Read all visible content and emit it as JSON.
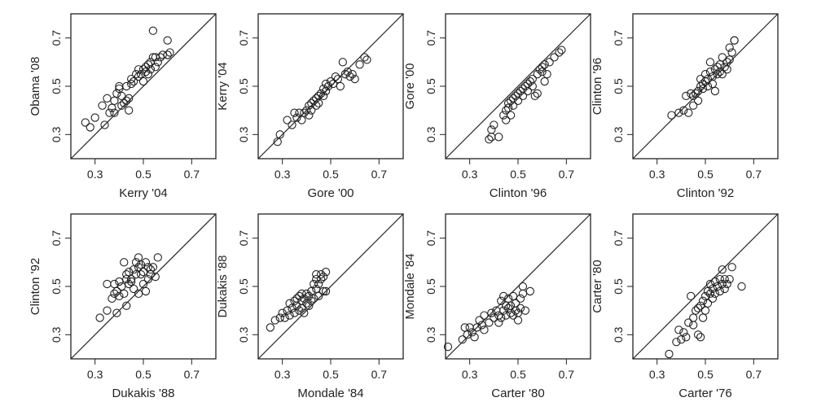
{
  "chart_data": [
    {
      "type": "scatter",
      "xlabel": "Kerry '04",
      "ylabel": "Obama '08",
      "xlim": [
        0.2,
        0.8
      ],
      "ylim": [
        0.2,
        0.8
      ],
      "xticks": [
        "0.3",
        "0.5",
        "0.7"
      ],
      "yticks": [
        "0.3",
        "0.5",
        "0.7"
      ],
      "reference_line": "y = x",
      "points": [
        [
          0.26,
          0.35
        ],
        [
          0.28,
          0.33
        ],
        [
          0.3,
          0.37
        ],
        [
          0.33,
          0.42
        ],
        [
          0.34,
          0.34
        ],
        [
          0.35,
          0.45
        ],
        [
          0.36,
          0.39
        ],
        [
          0.37,
          0.41
        ],
        [
          0.38,
          0.44
        ],
        [
          0.38,
          0.39
        ],
        [
          0.39,
          0.47
        ],
        [
          0.4,
          0.49
        ],
        [
          0.4,
          0.5
        ],
        [
          0.41,
          0.42
        ],
        [
          0.41,
          0.46
        ],
        [
          0.42,
          0.43
        ],
        [
          0.43,
          0.44
        ],
        [
          0.43,
          0.5
        ],
        [
          0.44,
          0.45
        ],
        [
          0.44,
          0.4
        ],
        [
          0.45,
          0.51
        ],
        [
          0.45,
          0.53
        ],
        [
          0.46,
          0.52
        ],
        [
          0.47,
          0.55
        ],
        [
          0.48,
          0.54
        ],
        [
          0.48,
          0.57
        ],
        [
          0.49,
          0.55
        ],
        [
          0.5,
          0.57
        ],
        [
          0.5,
          0.52
        ],
        [
          0.51,
          0.58
        ],
        [
          0.51,
          0.56
        ],
        [
          0.52,
          0.55
        ],
        [
          0.52,
          0.59
        ],
        [
          0.53,
          0.57
        ],
        [
          0.53,
          0.6
        ],
        [
          0.54,
          0.62
        ],
        [
          0.54,
          0.73
        ],
        [
          0.55,
          0.58
        ],
        [
          0.55,
          0.62
        ],
        [
          0.56,
          0.6
        ],
        [
          0.57,
          0.62
        ],
        [
          0.58,
          0.63
        ],
        [
          0.6,
          0.63
        ],
        [
          0.6,
          0.69
        ],
        [
          0.61,
          0.64
        ]
      ]
    },
    {
      "type": "scatter",
      "xlabel": "Gore '00",
      "ylabel": "Kerry '04",
      "xlim": [
        0.2,
        0.8
      ],
      "ylim": [
        0.2,
        0.8
      ],
      "xticks": [
        "0.3",
        "0.5",
        "0.7"
      ],
      "yticks": [
        "0.3",
        "0.5",
        "0.7"
      ],
      "reference_line": "y = x",
      "points": [
        [
          0.28,
          0.27
        ],
        [
          0.29,
          0.3
        ],
        [
          0.32,
          0.36
        ],
        [
          0.34,
          0.34
        ],
        [
          0.35,
          0.39
        ],
        [
          0.36,
          0.37
        ],
        [
          0.37,
          0.39
        ],
        [
          0.38,
          0.36
        ],
        [
          0.39,
          0.39
        ],
        [
          0.4,
          0.4
        ],
        [
          0.41,
          0.42
        ],
        [
          0.41,
          0.38
        ],
        [
          0.42,
          0.43
        ],
        [
          0.42,
          0.4
        ],
        [
          0.43,
          0.44
        ],
        [
          0.44,
          0.42
        ],
        [
          0.44,
          0.45
        ],
        [
          0.45,
          0.46
        ],
        [
          0.45,
          0.43
        ],
        [
          0.46,
          0.47
        ],
        [
          0.47,
          0.46
        ],
        [
          0.47,
          0.49
        ],
        [
          0.48,
          0.48
        ],
        [
          0.48,
          0.51
        ],
        [
          0.49,
          0.5
        ],
        [
          0.5,
          0.52
        ],
        [
          0.51,
          0.51
        ],
        [
          0.52,
          0.54
        ],
        [
          0.53,
          0.53
        ],
        [
          0.54,
          0.5
        ],
        [
          0.55,
          0.6
        ],
        [
          0.56,
          0.55
        ],
        [
          0.57,
          0.56
        ],
        [
          0.58,
          0.54
        ],
        [
          0.59,
          0.55
        ],
        [
          0.6,
          0.53
        ],
        [
          0.62,
          0.59
        ],
        [
          0.64,
          0.62
        ],
        [
          0.65,
          0.61
        ]
      ]
    },
    {
      "type": "scatter",
      "xlabel": "Clinton '96",
      "ylabel": "Gore '00",
      "xlim": [
        0.2,
        0.8
      ],
      "ylim": [
        0.2,
        0.8
      ],
      "xticks": [
        "0.3",
        "0.5",
        "0.7"
      ],
      "yticks": [
        "0.3",
        "0.5",
        "0.7"
      ],
      "reference_line": "y = x",
      "points": [
        [
          0.38,
          0.28
        ],
        [
          0.39,
          0.29
        ],
        [
          0.39,
          0.32
        ],
        [
          0.4,
          0.34
        ],
        [
          0.42,
          0.29
        ],
        [
          0.44,
          0.38
        ],
        [
          0.45,
          0.36
        ],
        [
          0.45,
          0.4
        ],
        [
          0.46,
          0.41
        ],
        [
          0.46,
          0.43
        ],
        [
          0.47,
          0.38
        ],
        [
          0.47,
          0.44
        ],
        [
          0.48,
          0.45
        ],
        [
          0.48,
          0.42
        ],
        [
          0.49,
          0.46
        ],
        [
          0.5,
          0.47
        ],
        [
          0.5,
          0.44
        ],
        [
          0.51,
          0.48
        ],
        [
          0.52,
          0.49
        ],
        [
          0.52,
          0.46
        ],
        [
          0.53,
          0.5
        ],
        [
          0.54,
          0.48
        ],
        [
          0.54,
          0.51
        ],
        [
          0.55,
          0.52
        ],
        [
          0.56,
          0.5
        ],
        [
          0.56,
          0.53
        ],
        [
          0.57,
          0.46
        ],
        [
          0.58,
          0.55
        ],
        [
          0.58,
          0.47
        ],
        [
          0.59,
          0.57
        ],
        [
          0.6,
          0.56
        ],
        [
          0.6,
          0.58
        ],
        [
          0.61,
          0.59
        ],
        [
          0.61,
          0.52
        ],
        [
          0.62,
          0.55
        ],
        [
          0.63,
          0.6
        ],
        [
          0.65,
          0.62
        ],
        [
          0.67,
          0.64
        ],
        [
          0.68,
          0.65
        ]
      ]
    },
    {
      "type": "scatter",
      "xlabel": "Clinton '92",
      "ylabel": "Clinton '96",
      "xlim": [
        0.2,
        0.8
      ],
      "ylim": [
        0.2,
        0.8
      ],
      "xticks": [
        "0.3",
        "0.5",
        "0.7"
      ],
      "yticks": [
        "0.3",
        "0.5",
        "0.7"
      ],
      "reference_line": "y = x",
      "points": [
        [
          0.36,
          0.38
        ],
        [
          0.39,
          0.39
        ],
        [
          0.41,
          0.4
        ],
        [
          0.42,
          0.46
        ],
        [
          0.43,
          0.39
        ],
        [
          0.44,
          0.47
        ],
        [
          0.45,
          0.46
        ],
        [
          0.45,
          0.42
        ],
        [
          0.46,
          0.47
        ],
        [
          0.47,
          0.48
        ],
        [
          0.47,
          0.44
        ],
        [
          0.48,
          0.5
        ],
        [
          0.48,
          0.53
        ],
        [
          0.49,
          0.51
        ],
        [
          0.49,
          0.49
        ],
        [
          0.5,
          0.52
        ],
        [
          0.5,
          0.55
        ],
        [
          0.51,
          0.53
        ],
        [
          0.51,
          0.5
        ],
        [
          0.52,
          0.56
        ],
        [
          0.52,
          0.6
        ],
        [
          0.53,
          0.54
        ],
        [
          0.53,
          0.51
        ],
        [
          0.54,
          0.57
        ],
        [
          0.54,
          0.48
        ],
        [
          0.55,
          0.58
        ],
        [
          0.55,
          0.55
        ],
        [
          0.56,
          0.59
        ],
        [
          0.56,
          0.56
        ],
        [
          0.57,
          0.62
        ],
        [
          0.57,
          0.55
        ],
        [
          0.58,
          0.58
        ],
        [
          0.59,
          0.6
        ],
        [
          0.59,
          0.57
        ],
        [
          0.6,
          0.61
        ],
        [
          0.6,
          0.66
        ],
        [
          0.61,
          0.64
        ],
        [
          0.62,
          0.69
        ],
        [
          0.62,
          0.69
        ]
      ]
    },
    {
      "type": "scatter",
      "xlabel": "Dukakis '88",
      "ylabel": "Clinton '92",
      "xlim": [
        0.2,
        0.8
      ],
      "ylim": [
        0.2,
        0.8
      ],
      "xticks": [
        "0.3",
        "0.5",
        "0.7"
      ],
      "yticks": [
        "0.3",
        "0.5",
        "0.7"
      ],
      "reference_line": "y = x",
      "points": [
        [
          0.32,
          0.37
        ],
        [
          0.35,
          0.4
        ],
        [
          0.35,
          0.51
        ],
        [
          0.37,
          0.45
        ],
        [
          0.38,
          0.47
        ],
        [
          0.38,
          0.51
        ],
        [
          0.39,
          0.39
        ],
        [
          0.39,
          0.48
        ],
        [
          0.4,
          0.52
        ],
        [
          0.4,
          0.46
        ],
        [
          0.41,
          0.5
        ],
        [
          0.42,
          0.47
        ],
        [
          0.42,
          0.6
        ],
        [
          0.43,
          0.53
        ],
        [
          0.43,
          0.42
        ],
        [
          0.43,
          0.55
        ],
        [
          0.44,
          0.51
        ],
        [
          0.44,
          0.56
        ],
        [
          0.45,
          0.53
        ],
        [
          0.45,
          0.52
        ],
        [
          0.46,
          0.49
        ],
        [
          0.46,
          0.57
        ],
        [
          0.47,
          0.55
        ],
        [
          0.47,
          0.6
        ],
        [
          0.48,
          0.58
        ],
        [
          0.48,
          0.62
        ],
        [
          0.48,
          0.47
        ],
        [
          0.49,
          0.55
        ],
        [
          0.49,
          0.59
        ],
        [
          0.5,
          0.51
        ],
        [
          0.5,
          0.56
        ],
        [
          0.51,
          0.6
        ],
        [
          0.51,
          0.48
        ],
        [
          0.52,
          0.53
        ],
        [
          0.52,
          0.58
        ],
        [
          0.53,
          0.57
        ],
        [
          0.53,
          0.55
        ],
        [
          0.54,
          0.58
        ],
        [
          0.55,
          0.54
        ],
        [
          0.56,
          0.62
        ]
      ]
    },
    {
      "type": "scatter",
      "xlabel": "Mondale '84",
      "ylabel": "Dukakis '88",
      "xlim": [
        0.2,
        0.8
      ],
      "ylim": [
        0.2,
        0.8
      ],
      "xticks": [
        "0.3",
        "0.5",
        "0.7"
      ],
      "yticks": [
        "0.3",
        "0.5",
        "0.7"
      ],
      "reference_line": "y = x",
      "points": [
        [
          0.25,
          0.33
        ],
        [
          0.27,
          0.36
        ],
        [
          0.29,
          0.37
        ],
        [
          0.3,
          0.39
        ],
        [
          0.31,
          0.37
        ],
        [
          0.32,
          0.4
        ],
        [
          0.33,
          0.43
        ],
        [
          0.33,
          0.38
        ],
        [
          0.34,
          0.41
        ],
        [
          0.35,
          0.44
        ],
        [
          0.35,
          0.39
        ],
        [
          0.36,
          0.45
        ],
        [
          0.36,
          0.42
        ],
        [
          0.37,
          0.46
        ],
        [
          0.37,
          0.4
        ],
        [
          0.38,
          0.44
        ],
        [
          0.38,
          0.47
        ],
        [
          0.38,
          0.41
        ],
        [
          0.39,
          0.45
        ],
        [
          0.39,
          0.39
        ],
        [
          0.4,
          0.43
        ],
        [
          0.4,
          0.47
        ],
        [
          0.41,
          0.42
        ],
        [
          0.41,
          0.46
        ],
        [
          0.42,
          0.44
        ],
        [
          0.42,
          0.48
        ],
        [
          0.43,
          0.51
        ],
        [
          0.43,
          0.45
        ],
        [
          0.44,
          0.53
        ],
        [
          0.44,
          0.49
        ],
        [
          0.44,
          0.55
        ],
        [
          0.45,
          0.51
        ],
        [
          0.45,
          0.46
        ],
        [
          0.46,
          0.53
        ],
        [
          0.46,
          0.55
        ],
        [
          0.47,
          0.48
        ],
        [
          0.47,
          0.54
        ],
        [
          0.48,
          0.56
        ],
        [
          0.48,
          0.48
        ]
      ]
    },
    {
      "type": "scatter",
      "xlabel": "Carter '80",
      "ylabel": "Mondale '84",
      "xlim": [
        0.2,
        0.8
      ],
      "ylim": [
        0.2,
        0.8
      ],
      "xticks": [
        "0.3",
        "0.5",
        "0.7"
      ],
      "yticks": [
        "0.3",
        "0.5",
        "0.7"
      ],
      "reference_line": "y = x",
      "points": [
        [
          0.21,
          0.25
        ],
        [
          0.27,
          0.28
        ],
        [
          0.28,
          0.33
        ],
        [
          0.29,
          0.3
        ],
        [
          0.3,
          0.33
        ],
        [
          0.31,
          0.31
        ],
        [
          0.32,
          0.29
        ],
        [
          0.33,
          0.33
        ],
        [
          0.34,
          0.36
        ],
        [
          0.35,
          0.34
        ],
        [
          0.36,
          0.38
        ],
        [
          0.36,
          0.32
        ],
        [
          0.38,
          0.35
        ],
        [
          0.39,
          0.39
        ],
        [
          0.4,
          0.37
        ],
        [
          0.41,
          0.4
        ],
        [
          0.42,
          0.38
        ],
        [
          0.42,
          0.35
        ],
        [
          0.43,
          0.44
        ],
        [
          0.43,
          0.37
        ],
        [
          0.44,
          0.4
        ],
        [
          0.44,
          0.46
        ],
        [
          0.45,
          0.42
        ],
        [
          0.45,
          0.38
        ],
        [
          0.46,
          0.41
        ],
        [
          0.46,
          0.45
        ],
        [
          0.47,
          0.39
        ],
        [
          0.47,
          0.42
        ],
        [
          0.48,
          0.38
        ],
        [
          0.48,
          0.46
        ],
        [
          0.49,
          0.4
        ],
        [
          0.49,
          0.43
        ],
        [
          0.5,
          0.36
        ],
        [
          0.5,
          0.39
        ],
        [
          0.51,
          0.45
        ],
        [
          0.51,
          0.41
        ],
        [
          0.52,
          0.47
        ],
        [
          0.52,
          0.5
        ],
        [
          0.53,
          0.4
        ],
        [
          0.55,
          0.48
        ]
      ]
    },
    {
      "type": "scatter",
      "xlabel": "Carter '76",
      "ylabel": "Carter '80",
      "xlim": [
        0.2,
        0.8
      ],
      "ylim": [
        0.2,
        0.8
      ],
      "xticks": [
        "0.3",
        "0.5",
        "0.7"
      ],
      "yticks": [
        "0.3",
        "0.5",
        "0.7"
      ],
      "reference_line": "y = x",
      "points": [
        [
          0.35,
          0.22
        ],
        [
          0.38,
          0.27
        ],
        [
          0.39,
          0.32
        ],
        [
          0.4,
          0.28
        ],
        [
          0.41,
          0.31
        ],
        [
          0.42,
          0.29
        ],
        [
          0.43,
          0.35
        ],
        [
          0.44,
          0.46
        ],
        [
          0.45,
          0.34
        ],
        [
          0.45,
          0.37
        ],
        [
          0.46,
          0.4
        ],
        [
          0.47,
          0.3
        ],
        [
          0.47,
          0.41
        ],
        [
          0.48,
          0.42
        ],
        [
          0.48,
          0.29
        ],
        [
          0.49,
          0.44
        ],
        [
          0.49,
          0.37
        ],
        [
          0.5,
          0.46
        ],
        [
          0.5,
          0.4
        ],
        [
          0.51,
          0.48
        ],
        [
          0.51,
          0.43
        ],
        [
          0.52,
          0.47
        ],
        [
          0.52,
          0.51
        ],
        [
          0.53,
          0.45
        ],
        [
          0.53,
          0.49
        ],
        [
          0.54,
          0.52
        ],
        [
          0.54,
          0.47
        ],
        [
          0.55,
          0.5
        ],
        [
          0.56,
          0.48
        ],
        [
          0.56,
          0.53
        ],
        [
          0.57,
          0.51
        ],
        [
          0.57,
          0.57
        ],
        [
          0.58,
          0.49
        ],
        [
          0.58,
          0.53
        ],
        [
          0.59,
          0.51
        ],
        [
          0.6,
          0.53
        ],
        [
          0.61,
          0.58
        ],
        [
          0.65,
          0.5
        ]
      ]
    }
  ]
}
